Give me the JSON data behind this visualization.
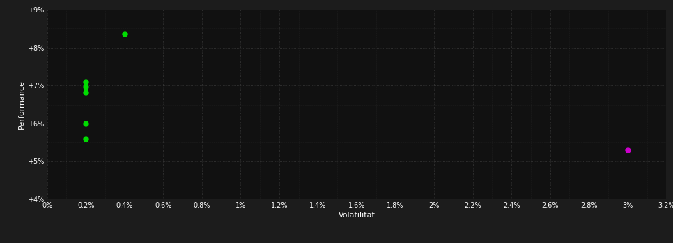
{
  "background_color": "#1c1c1c",
  "plot_bg_color": "#111111",
  "grid_color": "#3a3a3a",
  "text_color": "#ffffff",
  "xlabel": "Volatilität",
  "ylabel": "Performance",
  "xlim": [
    0.0,
    0.032
  ],
  "ylim": [
    0.04,
    0.09
  ],
  "xticks": [
    0.0,
    0.002,
    0.004,
    0.006,
    0.008,
    0.01,
    0.012,
    0.014,
    0.016,
    0.018,
    0.02,
    0.022,
    0.024,
    0.026,
    0.028,
    0.03,
    0.032
  ],
  "yticks": [
    0.04,
    0.05,
    0.06,
    0.07,
    0.08,
    0.09
  ],
  "minor_xticks_count": 4,
  "green_points": [
    [
      0.004,
      0.0835
    ],
    [
      0.002,
      0.071
    ],
    [
      0.002,
      0.0697
    ],
    [
      0.002,
      0.0682
    ],
    [
      0.002,
      0.06
    ],
    [
      0.002,
      0.056
    ]
  ],
  "magenta_points": [
    [
      0.03,
      0.053
    ]
  ],
  "green_color": "#00dd00",
  "magenta_color": "#cc00cc",
  "marker_size": 5,
  "font_size_ticks": 7,
  "font_size_label": 8
}
